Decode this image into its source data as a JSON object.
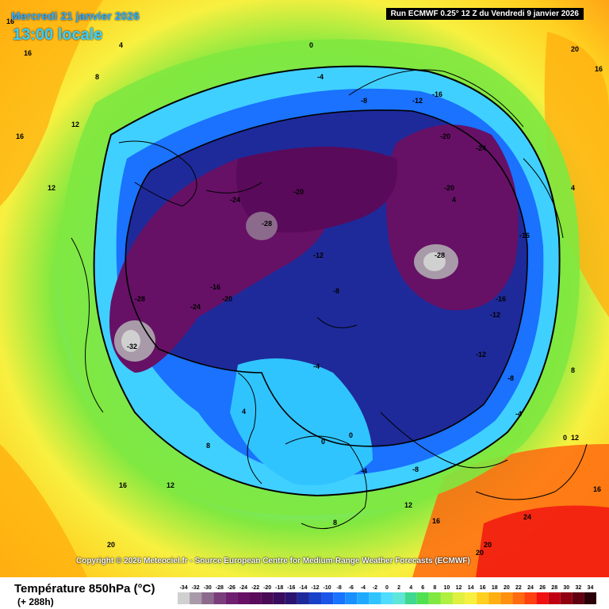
{
  "header": {
    "valid_date": "Mercredi 21 janvier 2026",
    "local_time": "13:00 locale",
    "run_info": "Run ECMWF 0.25° 12 Z du Vendredi 9 janvier 2026"
  },
  "copyright": "Copyright © 2026 Meteociel.fr - Source European Centre for Medium-Range Weather Forecasts (ECMWF)",
  "legend": {
    "title": "Température 850hPa (°C)",
    "lead": "(+ 288h)",
    "ticks": [
      "-34",
      "-32",
      "-30",
      "-28",
      "-26",
      "-24",
      "-22",
      "-20",
      "-18",
      "-16",
      "-14",
      "-12",
      "-10",
      "-8",
      "-6",
      "-4",
      "-2",
      "0",
      "2",
      "4",
      "6",
      "8",
      "10",
      "12",
      "14",
      "16",
      "18",
      "20",
      "22",
      "24",
      "26",
      "28",
      "30",
      "32",
      "34"
    ],
    "colors": [
      "#d0d0d0",
      "#a89aa8",
      "#8c6a8c",
      "#7a3f7a",
      "#6f1f6f",
      "#661166",
      "#5a0a5a",
      "#4a0a56",
      "#3a0c5e",
      "#2a1470",
      "#1e2a9a",
      "#1840c8",
      "#1a55e8",
      "#1a72ff",
      "#1a90ff",
      "#20aaff",
      "#30c4ff",
      "#50dcff",
      "#60e6d8",
      "#40d890",
      "#50e050",
      "#80e840",
      "#b0f040",
      "#e0f040",
      "#f8f040",
      "#ffd020",
      "#ffb010",
      "#ff9010",
      "#ff6a10",
      "#ff4010",
      "#f01010",
      "#c00010",
      "#900010",
      "#600010",
      "#2a0008"
    ]
  },
  "map_labels": [
    {
      "text": "16"
    },
    {
      "text": "16"
    },
    {
      "text": "16"
    },
    {
      "text": "12"
    },
    {
      "text": "12"
    },
    {
      "text": "8"
    },
    {
      "text": "4"
    },
    {
      "text": "0"
    },
    {
      "text": "-4"
    },
    {
      "text": "-8"
    },
    {
      "text": "-12"
    },
    {
      "text": "-16"
    },
    {
      "text": "-20"
    },
    {
      "text": "-24"
    },
    {
      "text": "-28"
    },
    {
      "text": "-28"
    },
    {
      "text": "-28"
    },
    {
      "text": "-32"
    },
    {
      "text": "-24"
    },
    {
      "text": "-20"
    },
    {
      "text": "-16"
    },
    {
      "text": "-12"
    },
    {
      "text": "-8"
    },
    {
      "text": "-4"
    },
    {
      "text": "0"
    },
    {
      "text": "4"
    },
    {
      "text": "8"
    },
    {
      "text": "12"
    },
    {
      "text": "16"
    },
    {
      "text": "20"
    },
    {
      "text": "24"
    },
    {
      "text": "20"
    },
    {
      "text": "16"
    },
    {
      "text": "-16"
    },
    {
      "text": "-12"
    },
    {
      "text": "-20"
    },
    {
      "text": "-24"
    },
    {
      "text": "-20"
    },
    {
      "text": "-16"
    },
    {
      "text": "-12"
    },
    {
      "text": "-8"
    },
    {
      "text": "-4"
    },
    {
      "text": "0"
    },
    {
      "text": "4"
    },
    {
      "text": "8"
    },
    {
      "text": "12"
    },
    {
      "text": "16"
    },
    {
      "text": "20"
    },
    {
      "text": "4"
    },
    {
      "text": "0"
    },
    {
      "text": "-4"
    },
    {
      "text": "-8"
    },
    {
      "text": "8"
    },
    {
      "text": "12"
    },
    {
      "text": "16"
    },
    {
      "text": "20"
    }
  ]
}
